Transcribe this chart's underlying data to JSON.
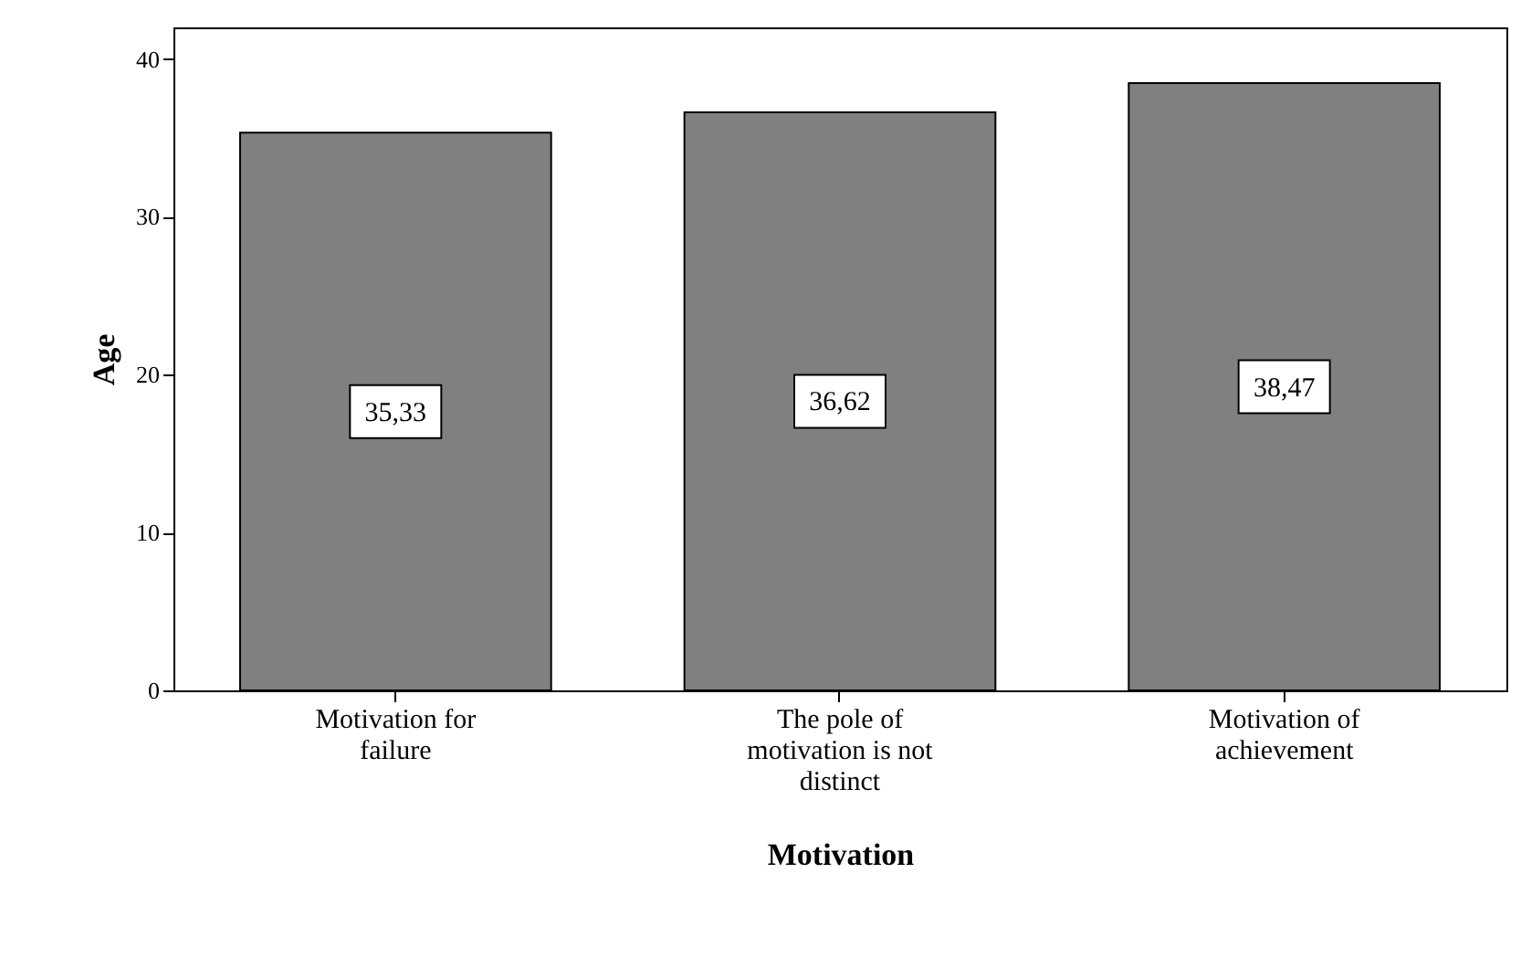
{
  "chart_data": {
    "type": "bar",
    "xlabel": "Motivation",
    "ylabel": "Age",
    "categories": [
      "Motivation for failure",
      "The pole of motivation is not distinct",
      "Motivation of achievement"
    ],
    "values": [
      35.33,
      36.62,
      38.47
    ],
    "value_labels": [
      "35,33",
      "36,62",
      "38,47"
    ],
    "color": "#808080",
    "ylim": [
      0,
      42
    ],
    "yticks": [
      0,
      10,
      20,
      30,
      40
    ],
    "grid": false
  }
}
